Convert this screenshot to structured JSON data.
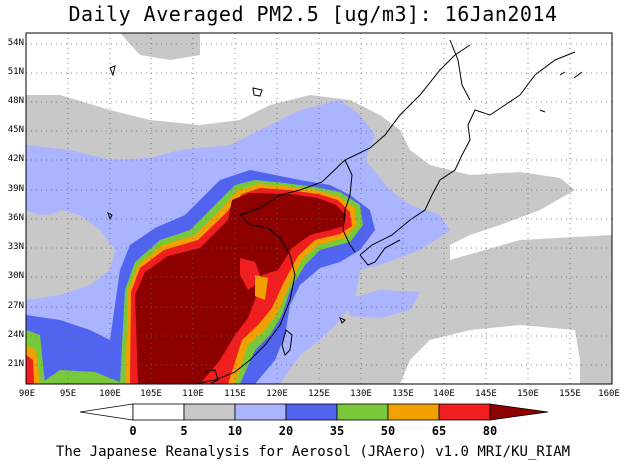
{
  "title": "Daily Averaged PM2.5 [ug/m3]: 16Jan2014",
  "footer": "The Japanese Reanalysis for Aerosol (JRAero) v1.0 MRI/KU_RIAM",
  "lat_labels": [
    "54N",
    "51N",
    "48N",
    "45N",
    "42N",
    "39N",
    "36N",
    "33N",
    "30N",
    "27N",
    "24N",
    "21N"
  ],
  "lon_labels": [
    "90E",
    "95E",
    "100E",
    "105E",
    "110E",
    "115E",
    "120E",
    "125E",
    "130E",
    "135E",
    "140E",
    "145E",
    "150E",
    "155E",
    "160E"
  ],
  "colorbar": {
    "levels": [
      "0",
      "5",
      "10",
      "20",
      "35",
      "50",
      "65",
      "80"
    ],
    "colors": [
      "#ffffff",
      "#c8c8c8",
      "#aab4ff",
      "#5064f0",
      "#78c83c",
      "#f0a000",
      "#f01e1e",
      "#8c0000"
    ]
  }
}
